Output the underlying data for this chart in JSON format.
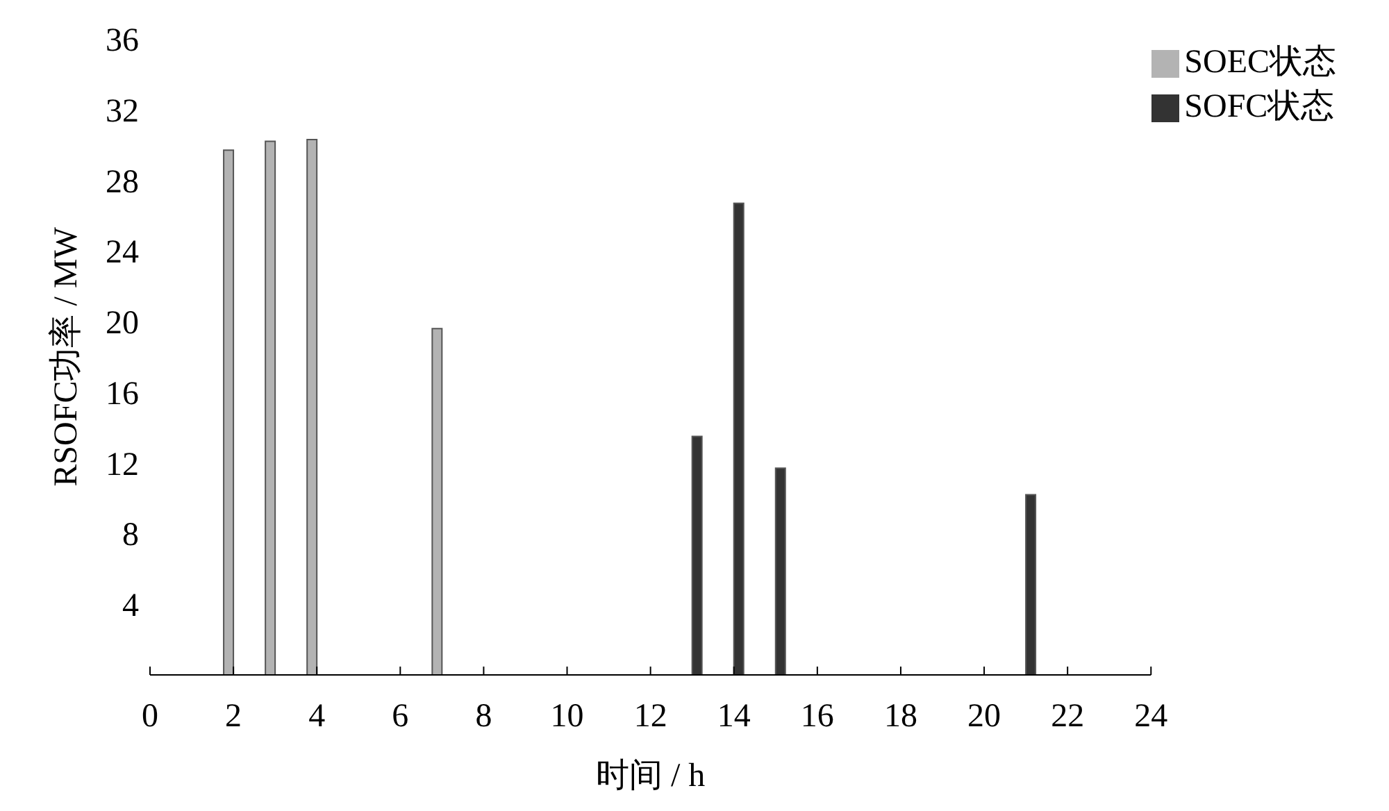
{
  "chart_data": {
    "type": "bar",
    "xlabel": "时间 / h",
    "ylabel": "RSOFC功率 / MW",
    "series": [
      {
        "name": "SOEC状态",
        "color": "#b3b3b3",
        "x": [
          2,
          3,
          4,
          7
        ],
        "values": [
          29.7,
          30.2,
          30.3,
          19.6
        ]
      },
      {
        "name": "SOFC状态",
        "color": "#333333",
        "x": [
          13,
          14,
          15,
          21
        ],
        "values": [
          13.5,
          26.7,
          11.7,
          10.2
        ]
      }
    ],
    "xlim": [
      0,
      24
    ],
    "xticks": [
      0,
      2,
      4,
      6,
      8,
      10,
      12,
      14,
      16,
      18,
      20,
      22,
      24
    ],
    "ylim": [
      0,
      36
    ],
    "yticks": [
      4,
      8,
      12,
      16,
      20,
      24,
      28,
      32,
      36
    ],
    "legend": "top right"
  }
}
